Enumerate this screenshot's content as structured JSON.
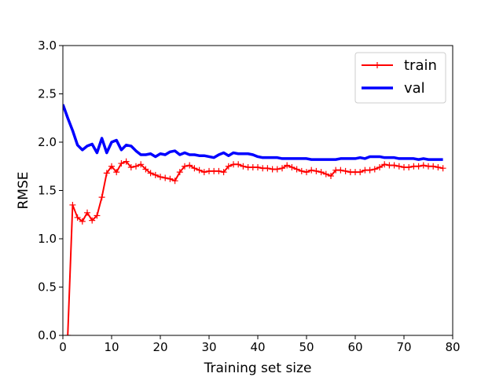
{
  "chart_data": {
    "type": "line",
    "title": "",
    "xlabel": "Training set size",
    "ylabel": "RMSE",
    "xlim": [
      0,
      80
    ],
    "ylim": [
      0,
      3.0
    ],
    "xticks": [
      0,
      10,
      20,
      30,
      40,
      50,
      60,
      70,
      80
    ],
    "xtick_labels": [
      "0",
      "10",
      "20",
      "30",
      "40",
      "50",
      "60",
      "70",
      "80"
    ],
    "yticks": [
      0,
      0.5,
      1.0,
      1.5,
      2.0,
      2.5,
      3.0
    ],
    "ytick_labels": [
      "0.0",
      "0.5",
      "1.0",
      "1.5",
      "2.0",
      "2.5",
      "3.0"
    ],
    "grid": false,
    "legend_position": "top-right",
    "series": [
      {
        "name": "train",
        "color": "#ff0000",
        "style": "solid line with + markers",
        "x": [
          1,
          2,
          3,
          4,
          5,
          6,
          7,
          8,
          9,
          10,
          11,
          12,
          13,
          14,
          15,
          16,
          17,
          18,
          19,
          20,
          21,
          22,
          23,
          24,
          25,
          26,
          27,
          28,
          29,
          30,
          31,
          32,
          33,
          34,
          35,
          36,
          37,
          38,
          39,
          40,
          41,
          42,
          43,
          44,
          45,
          46,
          47,
          48,
          49,
          50,
          51,
          52,
          53,
          54,
          55,
          56,
          57,
          58,
          59,
          60,
          61,
          62,
          63,
          64,
          65,
          66,
          67,
          68,
          69,
          70,
          71,
          72,
          73,
          74,
          75,
          76,
          77,
          78
        ],
        "values": [
          0.0,
          1.35,
          1.22,
          1.18,
          1.27,
          1.19,
          1.24,
          1.43,
          1.68,
          1.75,
          1.69,
          1.78,
          1.8,
          1.74,
          1.75,
          1.77,
          1.72,
          1.68,
          1.66,
          1.64,
          1.63,
          1.62,
          1.6,
          1.69,
          1.75,
          1.76,
          1.73,
          1.71,
          1.69,
          1.7,
          1.7,
          1.7,
          1.69,
          1.75,
          1.77,
          1.77,
          1.75,
          1.74,
          1.74,
          1.74,
          1.73,
          1.73,
          1.72,
          1.72,
          1.73,
          1.76,
          1.74,
          1.72,
          1.7,
          1.69,
          1.71,
          1.7,
          1.69,
          1.67,
          1.65,
          1.71,
          1.71,
          1.7,
          1.69,
          1.69,
          1.69,
          1.71,
          1.71,
          1.72,
          1.74,
          1.77,
          1.76,
          1.76,
          1.75,
          1.74,
          1.74,
          1.75,
          1.75,
          1.76,
          1.75,
          1.75,
          1.74,
          1.73
        ]
      },
      {
        "name": "val",
        "color": "#0000ff",
        "style": "thick solid line",
        "x": [
          0,
          1,
          2,
          3,
          4,
          5,
          6,
          7,
          8,
          9,
          10,
          11,
          12,
          13,
          14,
          15,
          16,
          17,
          18,
          19,
          20,
          21,
          22,
          23,
          24,
          25,
          26,
          27,
          28,
          29,
          30,
          31,
          32,
          33,
          34,
          35,
          36,
          37,
          38,
          39,
          40,
          41,
          42,
          43,
          44,
          45,
          46,
          47,
          48,
          49,
          50,
          51,
          52,
          53,
          54,
          55,
          56,
          57,
          58,
          59,
          60,
          61,
          62,
          63,
          64,
          65,
          66,
          67,
          68,
          69,
          70,
          71,
          72,
          73,
          74,
          75,
          76,
          77,
          78
        ],
        "values": [
          2.39,
          2.25,
          2.12,
          1.97,
          1.92,
          1.96,
          1.98,
          1.89,
          2.04,
          1.89,
          2.0,
          2.02,
          1.92,
          1.97,
          1.96,
          1.91,
          1.87,
          1.87,
          1.88,
          1.85,
          1.88,
          1.87,
          1.9,
          1.91,
          1.87,
          1.89,
          1.87,
          1.87,
          1.86,
          1.86,
          1.85,
          1.84,
          1.87,
          1.89,
          1.86,
          1.89,
          1.88,
          1.88,
          1.88,
          1.87,
          1.85,
          1.84,
          1.84,
          1.84,
          1.84,
          1.83,
          1.83,
          1.83,
          1.83,
          1.83,
          1.83,
          1.82,
          1.82,
          1.82,
          1.82,
          1.82,
          1.82,
          1.83,
          1.83,
          1.83,
          1.83,
          1.84,
          1.83,
          1.85,
          1.85,
          1.85,
          1.84,
          1.84,
          1.84,
          1.83,
          1.83,
          1.83,
          1.83,
          1.82,
          1.83,
          1.82,
          1.82,
          1.82,
          1.82
        ]
      }
    ]
  }
}
